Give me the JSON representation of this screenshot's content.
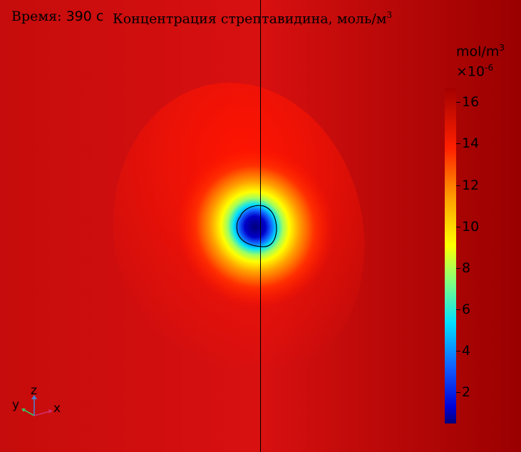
{
  "header": {
    "time_prefix": "Время: ",
    "time_value": "390 с",
    "title": "Концентрация стрептавидина, моль/м",
    "title_sup": "3"
  },
  "colorbar": {
    "unit": "mol/m",
    "unit_sup": "3",
    "scale_prefix": "×10",
    "scale_exp": "-6",
    "colormap": "rainbow",
    "colors": [
      "#00007a",
      "#0000d8",
      "#1060ff",
      "#00e0ff",
      "#80ff80",
      "#ffff00",
      "#ffa000",
      "#ff2000",
      "#a50000"
    ]
  },
  "axes": {
    "x": "x",
    "y": "y",
    "z": "z"
  },
  "chart_data": {
    "type": "heatmap",
    "title": "Концентрация стрептавидина, моль/м3",
    "unit": "mol/m3 ×10^-6",
    "range": [
      0.5,
      16.7
    ],
    "ticks": [
      "2",
      "4",
      "6",
      "8",
      "10",
      "12",
      "14",
      "16"
    ],
    "annotations": [
      "Время: 390 с"
    ]
  }
}
